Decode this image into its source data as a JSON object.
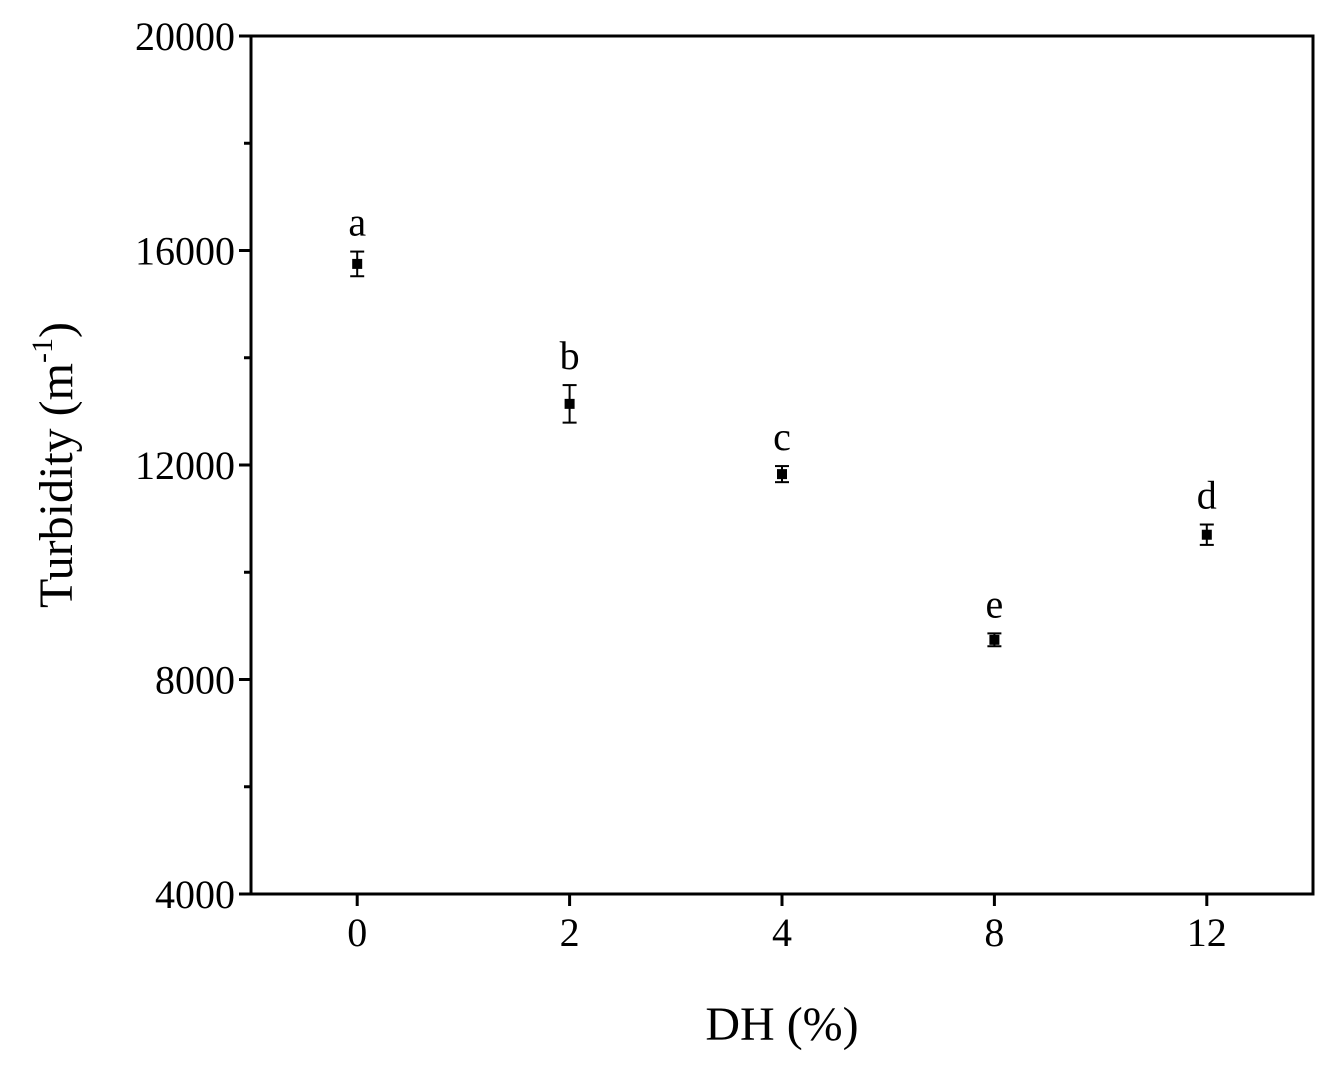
{
  "chart_data": {
    "type": "scatter",
    "x_label": "DH (%)",
    "y_label": [
      "Turbidity (m",
      "-1",
      ")"
    ],
    "categories": [
      "0",
      "2",
      "4",
      "8",
      "12"
    ],
    "series": [
      {
        "color": "#000000",
        "values": [
          15750,
          13140,
          11830,
          8740,
          10700
        ],
        "errors": [
          230,
          350,
          150,
          120,
          190
        ],
        "letters": [
          "a",
          "b",
          "c",
          "e",
          "d"
        ]
      }
    ],
    "ylim": [
      4000,
      20000
    ],
    "yticks": [
      4000,
      8000,
      12000,
      16000,
      20000
    ],
    "yminor_ticks": [
      6000,
      10000,
      14000,
      18000
    ]
  }
}
